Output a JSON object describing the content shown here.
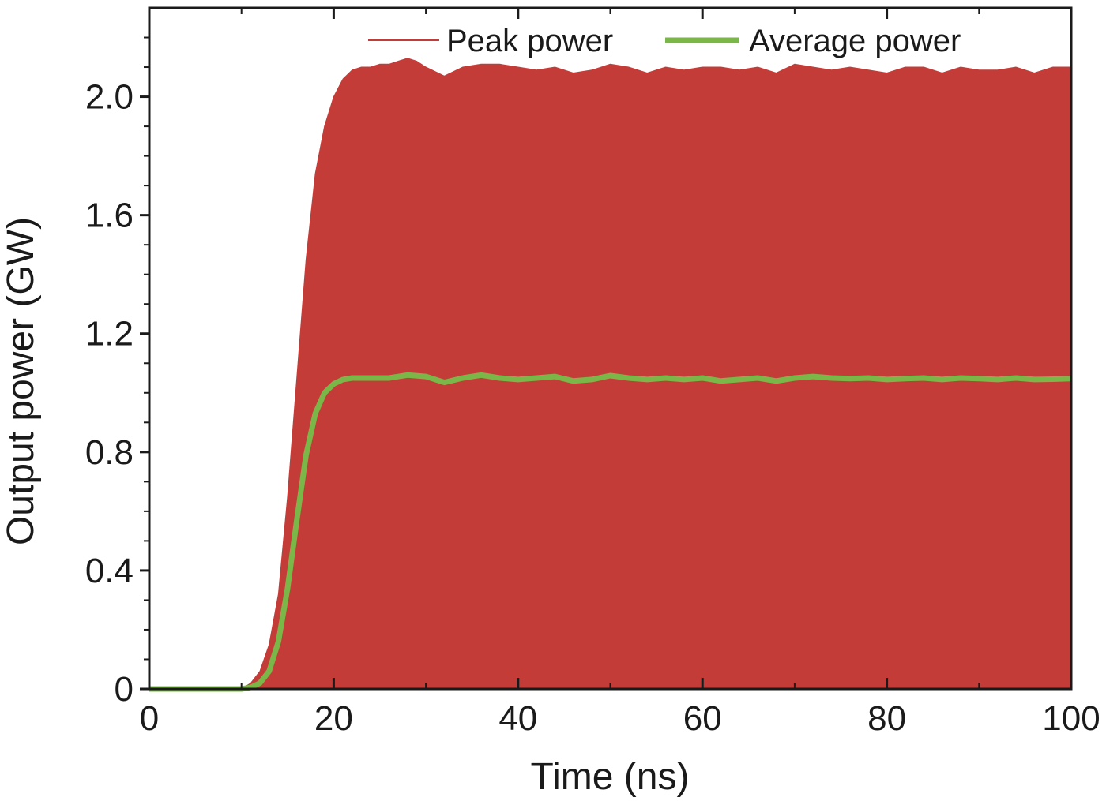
{
  "chart_data": {
    "type": "line",
    "title": "",
    "xlabel": "Time (ns)",
    "ylabel": "Output power (GW)",
    "xlim": [
      0,
      100
    ],
    "ylim": [
      0,
      2.3
    ],
    "x_ticks": [
      0,
      20,
      40,
      60,
      80,
      100
    ],
    "x_tick_labels": [
      "0",
      "20",
      "40",
      "60",
      "80",
      "100"
    ],
    "y_ticks": [
      0,
      0.4,
      0.8,
      1.2,
      1.6,
      2.0
    ],
    "y_tick_labels": [
      "0",
      "0.4",
      "0.8",
      "1.2",
      "1.6",
      "2.0"
    ],
    "grid": false,
    "legend_position": "top-right",
    "series": [
      {
        "name": "Peak power",
        "color": "#c43c38",
        "style": "filled-envelope",
        "x": [
          0,
          10,
          11,
          12,
          13,
          14,
          15,
          16,
          17,
          18,
          19,
          20,
          21,
          22,
          23,
          24,
          25,
          26,
          27,
          28,
          29,
          30,
          32,
          34,
          36,
          38,
          40,
          42,
          44,
          46,
          48,
          50,
          52,
          54,
          56,
          58,
          60,
          62,
          64,
          66,
          68,
          70,
          72,
          74,
          76,
          78,
          80,
          82,
          84,
          86,
          88,
          90,
          92,
          94,
          96,
          98,
          100
        ],
        "y": [
          0,
          0,
          0.02,
          0.06,
          0.15,
          0.32,
          0.65,
          1.05,
          1.45,
          1.74,
          1.9,
          2.0,
          2.06,
          2.09,
          2.1,
          2.1,
          2.11,
          2.11,
          2.12,
          2.13,
          2.12,
          2.1,
          2.07,
          2.1,
          2.11,
          2.11,
          2.1,
          2.09,
          2.1,
          2.08,
          2.09,
          2.11,
          2.1,
          2.08,
          2.1,
          2.09,
          2.1,
          2.1,
          2.09,
          2.1,
          2.08,
          2.11,
          2.1,
          2.09,
          2.1,
          2.09,
          2.08,
          2.1,
          2.1,
          2.08,
          2.1,
          2.09,
          2.09,
          2.1,
          2.08,
          2.1,
          2.1
        ]
      },
      {
        "name": "Average power",
        "color": "#7ab648",
        "style": "line",
        "x": [
          0,
          10,
          11,
          12,
          13,
          14,
          15,
          16,
          17,
          18,
          19,
          20,
          21,
          22,
          23,
          24,
          26,
          28,
          30,
          32,
          34,
          36,
          38,
          40,
          42,
          44,
          46,
          48,
          50,
          52,
          54,
          56,
          58,
          60,
          62,
          64,
          66,
          68,
          70,
          72,
          74,
          76,
          78,
          80,
          82,
          84,
          86,
          88,
          90,
          92,
          94,
          96,
          98,
          100
        ],
        "y": [
          0,
          0,
          0.005,
          0.02,
          0.06,
          0.16,
          0.34,
          0.57,
          0.79,
          0.93,
          1.0,
          1.03,
          1.045,
          1.05,
          1.05,
          1.05,
          1.05,
          1.06,
          1.055,
          1.035,
          1.05,
          1.06,
          1.05,
          1.045,
          1.05,
          1.055,
          1.04,
          1.045,
          1.058,
          1.05,
          1.045,
          1.05,
          1.045,
          1.05,
          1.04,
          1.045,
          1.05,
          1.04,
          1.05,
          1.055,
          1.05,
          1.048,
          1.05,
          1.045,
          1.048,
          1.05,
          1.045,
          1.05,
          1.048,
          1.045,
          1.05,
          1.045,
          1.046,
          1.048
        ]
      }
    ]
  }
}
